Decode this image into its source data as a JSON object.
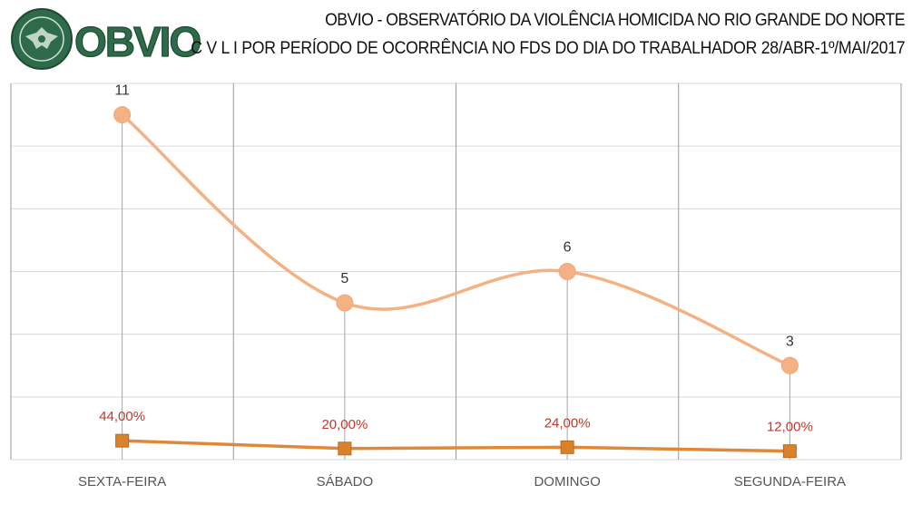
{
  "header": {
    "logo_text": "OBVIO",
    "title_line1": "OBVIO - OBSERVATÓRIO DA VIOLÊNCIA HOMICIDA NO RIO GRANDE DO NORTE",
    "title_line2": "C V L I  POR PERÍODO DE OCORRÊNCIA NO FDS DO DIA DO TRABALHADOR  28/ABR-1º/MAI/2017"
  },
  "colors": {
    "count_line": "#f4b183",
    "pct_line": "#e0883a",
    "pct_marker": "#d9822b",
    "grid": "#9a9a9a",
    "pct_text": "#c0392b",
    "logo_green": "#2e6b4a"
  },
  "chart_data": {
    "type": "line",
    "categories": [
      "SEXTA-FEIRA",
      "SÁBADO",
      "DOMINGO",
      "SEGUNDA-FEIRA"
    ],
    "ylim": [
      0,
      12
    ],
    "grid": true,
    "series": [
      {
        "values": [
          11,
          5,
          6,
          3
        ],
        "labels": [
          "11",
          "5",
          "6",
          "3"
        ],
        "marker": "circle",
        "smooth": true
      },
      {
        "values": [
          0.44,
          0.2,
          0.24,
          0.12
        ],
        "labels": [
          "44,00%",
          "20,00%",
          "24,00%",
          "12,00%"
        ],
        "marker": "square",
        "smooth": false
      }
    ]
  }
}
